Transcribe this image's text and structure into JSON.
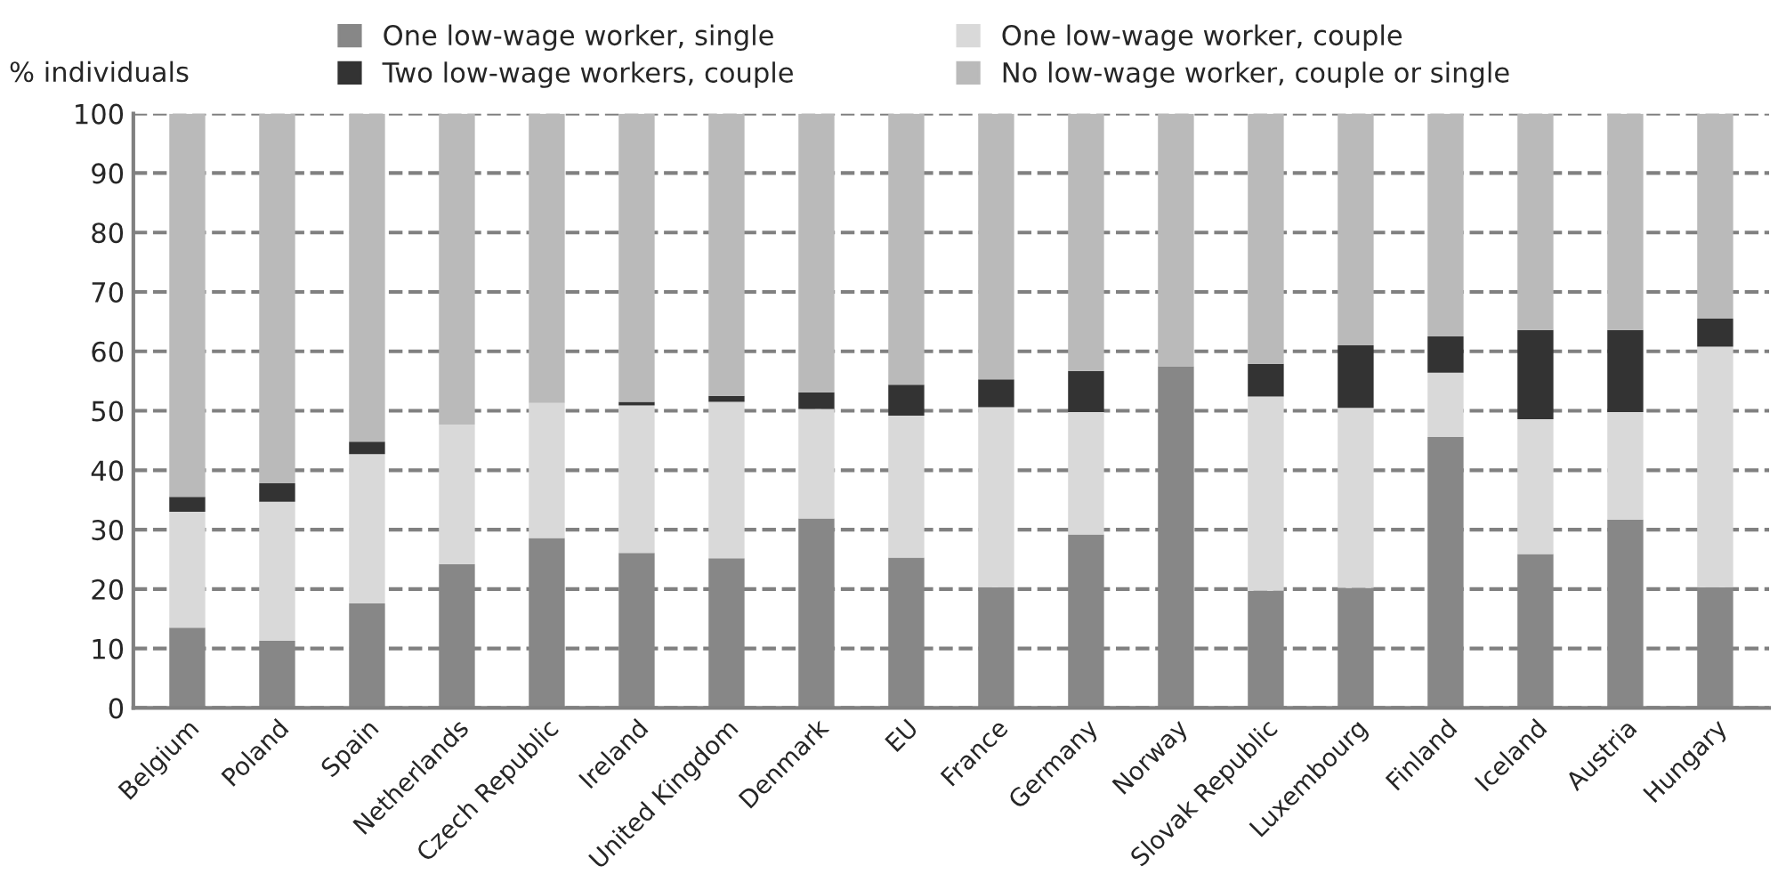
{
  "chart_data": {
    "type": "bar",
    "stacked": true,
    "ylabel": "% individuals",
    "categories": [
      "Belgium",
      "Poland",
      "Spain",
      "Netherlands",
      "Czech Republic",
      "Ireland",
      "United Kingdom",
      "Denmark",
      "EU",
      "France",
      "Germany",
      "Norway",
      "Slovak Republic",
      "Luxembourg",
      "Finland",
      "Iceland",
      "Austria",
      "Hungary"
    ],
    "series": [
      {
        "name": "One low-wage worker, single",
        "color": "#878787",
        "values": [
          13.5,
          11.3,
          17.6,
          24.2,
          28.6,
          26.1,
          25.2,
          31.9,
          25.3,
          20.3,
          29.2,
          57.5,
          19.7,
          20.2,
          45.6,
          25.9,
          31.7,
          20.3
        ]
      },
      {
        "name": "One low-wage worker, couple",
        "color": "#d9d9d9",
        "values": [
          19.5,
          23.4,
          25.1,
          23.5,
          22.7,
          24.8,
          26.3,
          18.4,
          23.9,
          30.3,
          20.6,
          0,
          32.7,
          30.3,
          10.8,
          22.7,
          18.1,
          40.5
        ]
      },
      {
        "name": "Two low-wage workers, couple",
        "color": "#333333",
        "values": [
          2.5,
          3.1,
          2.1,
          0,
          0,
          0.6,
          1.0,
          2.8,
          5.2,
          4.7,
          6.9,
          0,
          5.5,
          10.5,
          6.1,
          15.0,
          13.8,
          4.7
        ]
      },
      {
        "name": "No low-wage worker, couple or single",
        "color": "#bababa",
        "values": [
          64.5,
          62.2,
          55.2,
          52.3,
          48.7,
          48.5,
          47.5,
          46.9,
          45.6,
          44.7,
          43.3,
          42.5,
          42.1,
          39.0,
          37.5,
          36.4,
          36.4,
          34.5
        ]
      }
    ],
    "ylim": [
      0,
      100
    ],
    "yticks": [
      0,
      10,
      20,
      30,
      40,
      50,
      60,
      70,
      80,
      90,
      100
    ],
    "grid": "y",
    "legend": "top"
  }
}
